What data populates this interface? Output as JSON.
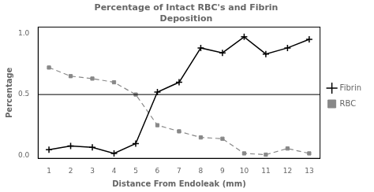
{
  "chart_data": {
    "type": "line",
    "title": "Percentage of Intact RBC's and Fibrin\nDeposition",
    "x_label": "Distance From Endoleak (mm)",
    "y_label": "Percentage",
    "xlim": [
      0.5,
      13.5
    ],
    "ylim": [
      -0.02,
      1.05
    ],
    "xticks": [
      1,
      2,
      3,
      4,
      5,
      6,
      7,
      8,
      9,
      10,
      11,
      12,
      13
    ],
    "yticks": [
      {
        "value": 0,
        "label": "0.0"
      },
      {
        "value": 0.5,
        "label": "0.5"
      },
      {
        "value": 1,
        "label": "1.0"
      }
    ],
    "hline": 0.5,
    "grid": false,
    "legend": "right",
    "x": [
      1,
      2,
      3,
      4,
      5,
      6,
      7,
      8,
      9,
      10,
      11,
      12,
      13
    ],
    "series": [
      {
        "name": "Fibrin",
        "color": "#000000",
        "marker": "plus",
        "line_style": "solid",
        "values": [
          0.05,
          0.08,
          0.07,
          0.02,
          0.1,
          0.52,
          0.6,
          0.88,
          0.84,
          0.97,
          0.83,
          0.88,
          0.95
        ]
      },
      {
        "name": "RBC",
        "color": "#888888",
        "marker": "square",
        "line_style": "dashed",
        "values": [
          0.72,
          0.65,
          0.63,
          0.6,
          0.5,
          0.25,
          0.2,
          0.15,
          0.14,
          0.02,
          0.01,
          0.06,
          0.02
        ]
      }
    ]
  }
}
